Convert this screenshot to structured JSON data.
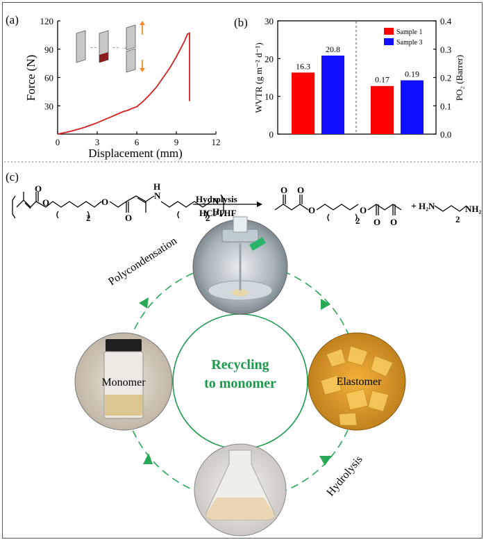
{
  "panel_labels": {
    "a": "(a)",
    "b": "(b)",
    "c": "(c)"
  },
  "chart_data": [
    {
      "type": "line",
      "panel": "(a)",
      "title": "",
      "xlabel": "Displacement (mm)",
      "ylabel": "Force (N)",
      "xlim": [
        0,
        12
      ],
      "ylim": [
        0,
        120
      ],
      "xticks": [
        0,
        3,
        6,
        9,
        12
      ],
      "yticks": [
        30,
        60,
        90,
        120
      ],
      "color": "#d61e1e",
      "series": [
        {
          "name": "Force-displacement",
          "x": [
            0,
            0.5,
            1,
            1.5,
            2,
            2.5,
            3,
            3.5,
            4,
            4.5,
            5,
            5.3,
            5.6,
            6,
            6.5,
            7,
            7.5,
            8,
            8.5,
            9,
            9.3,
            9.6,
            9.85,
            10.0,
            10.0
          ],
          "y": [
            0,
            1.5,
            3,
            5,
            7,
            9.5,
            12,
            15,
            18,
            21,
            24,
            25,
            27,
            29,
            35,
            42,
            50,
            60,
            70,
            82,
            90,
            98,
            106,
            107,
            35
          ]
        }
      ]
    },
    {
      "type": "bar",
      "panel": "(b)",
      "groups": [
        "WVTR",
        "PO2"
      ],
      "series": [
        {
          "name": "Sample 1",
          "color": "#ff0000",
          "values": [
            16.3,
            0.17
          ]
        },
        {
          "name": "Sample 3",
          "color": "#1010ff",
          "values": [
            20.8,
            0.19
          ]
        }
      ],
      "data_labels": [
        "16.3",
        "20.8",
        "0.17",
        "0.19"
      ],
      "ylabel_left": "WVTR (g m⁻² d⁻¹)",
      "ylabel_right": "PO₂ (Barrer)",
      "ylim_left": [
        0,
        30
      ],
      "yticks_left": [
        0,
        10,
        20,
        30
      ],
      "ylim_right": [
        0,
        0.4
      ],
      "yticks_right": [
        "0.0",
        "0.1",
        "0.2",
        "0.3",
        "0.4"
      ],
      "legend": "top-right"
    }
  ],
  "reaction": {
    "arrow_top": "Hydrolysis",
    "arrow_bottom": "HCl/THF",
    "subscript_2": "2",
    "plus": "+",
    "amine_left": "H₂N",
    "amine_right": "NH₂",
    "nh_label": "N",
    "h_label": "H"
  },
  "cycle": {
    "center_line1": "Recycling",
    "center_line2": "to monomer",
    "polycondensation": "Polycondensation",
    "hydrolysis": "Hydrolysis",
    "monomer": "Monomer",
    "elastomer": "Elastomer"
  },
  "colors": {
    "green": "#1a9a4a",
    "arrow_green": "#28a855",
    "red": "#d61e1e"
  }
}
